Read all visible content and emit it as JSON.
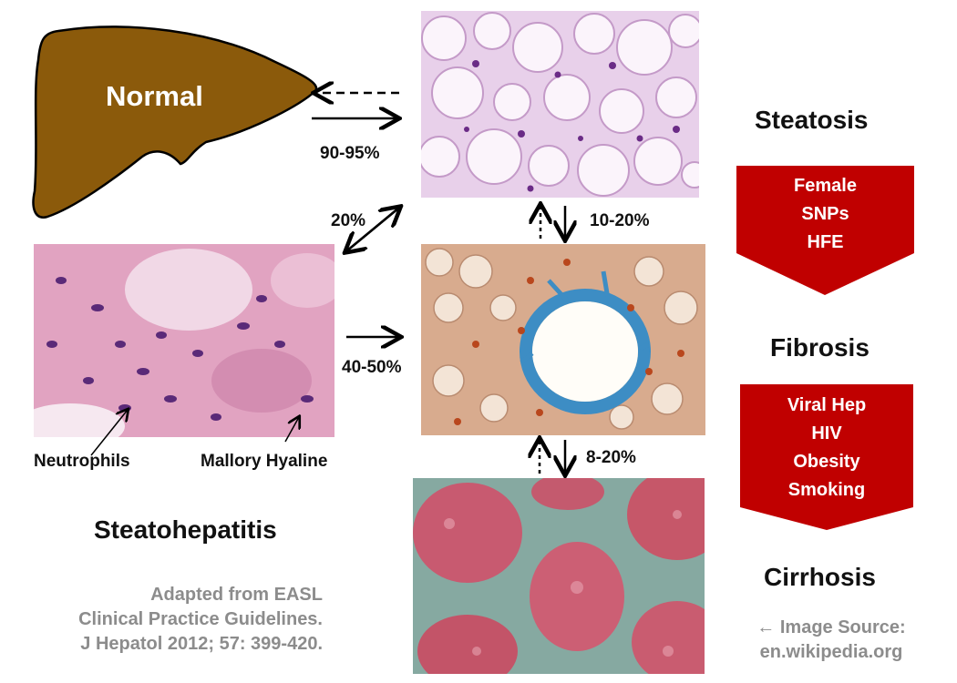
{
  "stages": {
    "normal": "Normal",
    "steatosis": "Steatosis",
    "fibrosis": "Fibrosis",
    "cirrhosis": "Cirrhosis",
    "steatohepatitis": "Steatohepatitis"
  },
  "transitions": {
    "normal_to_steatosis": "90-95%",
    "steatosis_to_steatohepatitis": "20%",
    "steatosis_to_fibrosis": "10-20%",
    "steatohepatitis_to_fibrosis": "40-50%",
    "fibrosis_to_cirrhosis": "8-20%"
  },
  "annotations": {
    "neutrophils": "Neutrophils",
    "mallory_hyaline": "Mallory Hyaline"
  },
  "risk_factors": {
    "steatosis_to_fibrosis": [
      "Female",
      "SNPs",
      "HFE"
    ],
    "fibrosis_to_cirrhosis": [
      "Viral Hep",
      "HIV",
      "Obesity",
      "Smoking"
    ]
  },
  "citation": [
    "Adapted from EASL",
    "Clinical Practice Guidelines.",
    "J Hepatol 2012; 57: 399-420."
  ],
  "image_source": [
    "← Image Source:",
    "en.wikipedia.org"
  ],
  "colors": {
    "liver": "#8b5a0b",
    "banner": "#c00000",
    "citation": "#8c8c8c"
  }
}
